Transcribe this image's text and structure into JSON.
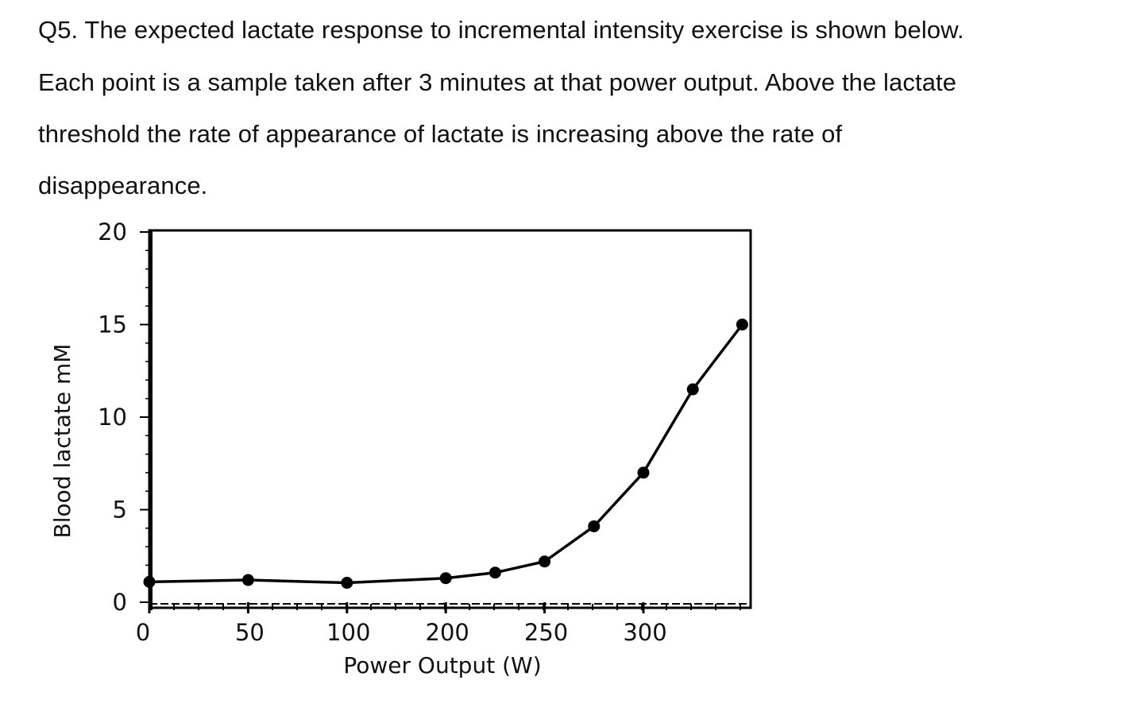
{
  "question": {
    "lines": [
      "Q5. The expected lactate response to incremental intensity exercise is shown below.",
      "Each point is a sample taken after 3 minutes at that power output. Above the lactate",
      "threshold the rate of appearance of lactate is increasing above the rate of",
      "disappearance."
    ]
  },
  "chart_data": {
    "type": "line",
    "title": "",
    "xlabel": "Power Output (W)",
    "ylabel": "Blood lactate mM",
    "x_tick_labels": [
      "0",
      "50",
      "100",
      "200",
      "250",
      "300"
    ],
    "y_tick_labels": [
      "0",
      "5",
      "10",
      "15",
      "20"
    ],
    "ylim": [
      0,
      20
    ],
    "grid": false,
    "marker": "filled-circle",
    "color": "#000000",
    "x": [
      0,
      50,
      100,
      200,
      225,
      250,
      275,
      300,
      325,
      350
    ],
    "values": [
      1.1,
      1.2,
      1.05,
      1.3,
      1.6,
      2.2,
      4.1,
      7.0,
      11.5,
      15.0
    ]
  }
}
